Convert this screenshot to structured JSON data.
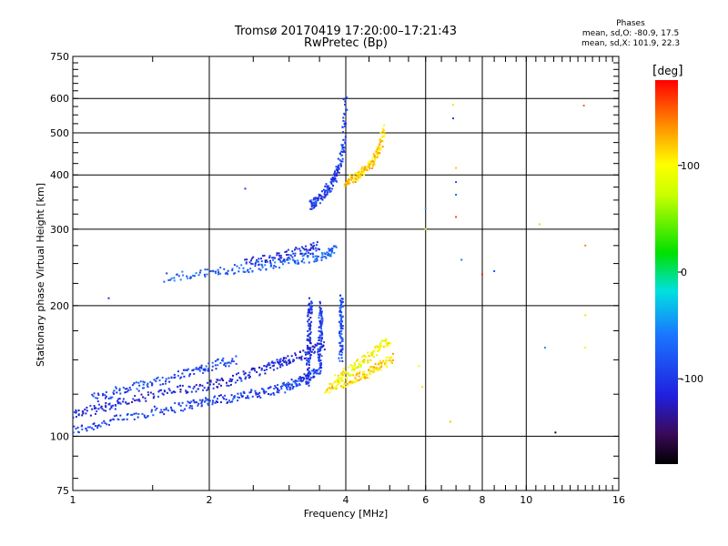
{
  "chart_data": {
    "type": "scatter",
    "title": "Tromsø 20170419 17:20:00–17:21:43",
    "subtitle": "RwPretec (Bp)",
    "xlabel": "Frequency [MHz]",
    "ylabel": "Stationary phase Virtual Height [km]",
    "x_scale": "log",
    "y_scale": "log",
    "xlim": [
      1,
      16
    ],
    "ylim": [
      75,
      750
    ],
    "x_ticks": [
      {
        "value": 1,
        "label": "1"
      },
      {
        "value": 2,
        "label": "2"
      },
      {
        "value": 4,
        "label": "4"
      },
      {
        "value": 6,
        "label": "6"
      },
      {
        "value": 8,
        "label": "8"
      },
      {
        "value": 10,
        "label": "10"
      },
      {
        "value": 16,
        "label": "16"
      }
    ],
    "y_ticks": [
      {
        "value": 75,
        "label": "75"
      },
      {
        "value": 100,
        "label": "100"
      },
      {
        "value": 200,
        "label": "200"
      },
      {
        "value": 300,
        "label": "300"
      },
      {
        "value": 400,
        "label": "400"
      },
      {
        "value": 500,
        "label": "500"
      },
      {
        "value": 600,
        "label": "600"
      },
      {
        "value": 750,
        "label": "750"
      }
    ],
    "x_gridlines": [
      2,
      4,
      6,
      8,
      10
    ],
    "y_gridlines": [
      100,
      200,
      300,
      400,
      500,
      600
    ],
    "grid": true,
    "colorbar": {
      "label": "deg",
      "range": [
        -180,
        180
      ],
      "ticks": [
        {
          "value": 100,
          "label": "100"
        },
        {
          "value": 0,
          "label": "0"
        },
        {
          "value": -100,
          "label": "-100"
        }
      ]
    },
    "phase_stats": {
      "heading": "Phases",
      "o_line": "mean, sd,O: -80.9, 17.5",
      "x_line": "mean, sd,X: 101.9, 22.3"
    },
    "series": [
      {
        "trace": "o-mode E/F1 trace",
        "segments": [
          {
            "f": [
              1.0,
              1.2,
              1.5,
              1.8,
              2.0,
              2.3,
              2.6,
              2.9,
              3.1,
              3.3,
              3.5
            ],
            "h": [
              103,
              108,
              114,
              118,
              121,
              123,
              126,
              129,
              133,
              137,
              142
            ],
            "phase": -95
          },
          {
            "f": [
              1.0,
              1.15,
              1.3,
              1.6,
              1.9,
              2.2,
              2.5,
              2.8,
              3.0,
              3.3,
              3.6
            ],
            "h": [
              112,
              116,
              120,
              126,
              130,
              134,
              140,
              146,
              150,
              156,
              163
            ],
            "phase": -110
          },
          {
            "f": [
              1.1,
              1.3,
              1.5,
              1.8,
              2.0,
              2.3
            ],
            "h": [
              122,
              128,
              133,
              140,
              145,
              150
            ],
            "phase": -90
          }
        ]
      },
      {
        "trace": "cusp columns",
        "segments": [
          {
            "f": [
              3.3,
              3.31,
              3.32,
              3.33,
              3.34
            ],
            "h": [
              130,
              150,
              170,
              190,
              205
            ],
            "phase": -105
          },
          {
            "f": [
              3.5,
              3.51,
              3.52,
              3.53
            ],
            "h": [
              140,
              160,
              180,
              200
            ],
            "phase": -95
          },
          {
            "f": [
              3.9,
              3.9,
              3.91,
              3.92
            ],
            "h": [
              150,
              170,
              190,
              210
            ],
            "phase": -85
          }
        ]
      },
      {
        "trace": "x-mode low trace",
        "segments": [
          {
            "f": [
              3.6,
              3.9,
              4.2,
              4.5,
              4.8,
              5.1
            ],
            "h": [
              128,
              132,
              136,
              140,
              146,
              152
            ],
            "phase": 110
          },
          {
            "f": [
              3.8,
              4.1,
              4.4,
              4.7,
              5.0
            ],
            "h": [
              136,
              142,
              150,
              158,
              168
            ],
            "phase": 95
          }
        ]
      },
      {
        "trace": "o-mode F2 trace",
        "segments": [
          {
            "f": [
              1.6,
              2.0,
              2.4,
              2.8,
              3.2,
              3.6,
              3.8
            ],
            "h": [
              232,
              238,
              244,
              250,
              256,
              262,
              270
            ],
            "phase": -75
          },
          {
            "f": [
              2.4,
              2.8,
              3.2,
              3.5
            ],
            "h": [
              250,
              258,
              268,
              274
            ],
            "phase": -105
          }
        ]
      },
      {
        "trace": "o-mode F2 upper",
        "segments": [
          {
            "f": [
              3.35,
              3.45,
              3.6,
              3.75,
              3.85,
              3.95,
              4.0
            ],
            "h": [
              340,
              350,
              365,
              385,
              410,
              460,
              610
            ],
            "phase": -100
          }
        ]
      },
      {
        "trace": "x-mode F2 upper",
        "segments": [
          {
            "f": [
              4.0,
              4.2,
              4.4,
              4.6,
              4.75,
              4.85
            ],
            "h": [
              385,
              395,
              410,
              430,
              460,
              510
            ],
            "phase": 115
          }
        ]
      },
      {
        "trace": "isolated echoes",
        "points": [
          {
            "f": 1.2,
            "h": 208,
            "phase": -105
          },
          {
            "f": 2.4,
            "h": 372,
            "phase": -95
          },
          {
            "f": 5.8,
            "h": 145,
            "phase": 105
          },
          {
            "f": 5.9,
            "h": 130,
            "phase": 110
          },
          {
            "f": 6.0,
            "h": 300,
            "phase": 105
          },
          {
            "f": 6.0,
            "h": 335,
            "phase": -40
          },
          {
            "f": 6.9,
            "h": 540,
            "phase": -95
          },
          {
            "f": 6.9,
            "h": 580,
            "phase": 110
          },
          {
            "f": 7.0,
            "h": 385,
            "phase": -90
          },
          {
            "f": 7.0,
            "h": 360,
            "phase": -70
          },
          {
            "f": 7.0,
            "h": 320,
            "phase": 160
          },
          {
            "f": 7.0,
            "h": 415,
            "phase": 120
          },
          {
            "f": 6.8,
            "h": 108,
            "phase": 120
          },
          {
            "f": 7.2,
            "h": 255,
            "phase": -60
          },
          {
            "f": 8.0,
            "h": 236,
            "phase": 170
          },
          {
            "f": 8.5,
            "h": 240,
            "phase": -80
          },
          {
            "f": 10.7,
            "h": 308,
            "phase": 115
          },
          {
            "f": 11.0,
            "h": 160,
            "phase": -50
          },
          {
            "f": 11.6,
            "h": 102,
            "phase": -170
          },
          {
            "f": 13.4,
            "h": 578,
            "phase": 150
          },
          {
            "f": 13.5,
            "h": 275,
            "phase": 140
          },
          {
            "f": 13.5,
            "h": 190,
            "phase": 110
          },
          {
            "f": 13.5,
            "h": 160,
            "phase": 105
          }
        ]
      }
    ]
  }
}
